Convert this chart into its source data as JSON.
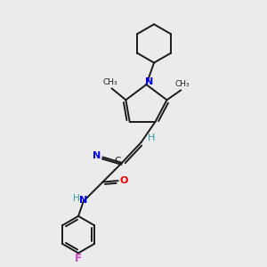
{
  "background_color": "#ebebeb",
  "bond_color": "#1a1a1a",
  "atom_colors": {
    "N": "#0000ee",
    "O": "#ee0000",
    "F": "#cc44cc",
    "C": "#1a1a1a",
    "H": "#3399aa",
    "CN_N": "#0000ee"
  },
  "figsize": [
    3.0,
    3.0
  ],
  "dpi": 100,
  "xlim": [
    0,
    10
  ],
  "ylim": [
    0,
    10
  ]
}
